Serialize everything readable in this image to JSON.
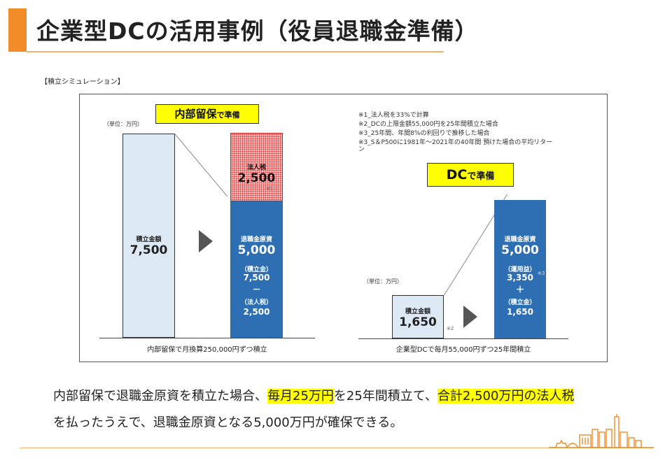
{
  "header": {
    "title": "企業型DCの活用事例（役員退職金準備）"
  },
  "simulation_label": "【積立シミュレーション】",
  "left_panel": {
    "badge_main": "内部留保",
    "badge_suffix": "で準備",
    "unit": "（単位：万円）",
    "bar1": {
      "label": "積立金額",
      "value": "7,500"
    },
    "tax_bar": {
      "label": "法人税",
      "value": "2,500",
      "note": "※1"
    },
    "bar2": {
      "label": "退職金原資",
      "value": "5,000",
      "line1_label": "（積立金）",
      "line1_value": "7,500",
      "operator": "－",
      "line2_label": "（法人税）",
      "line2_value": "2,500"
    },
    "caption": "内部留保で月換算250,000円ずつ積立"
  },
  "notes": [
    "※1_法人税を33%で計算",
    "※2_DCの上限金額55,000円を25年間積立た場合",
    "※3_25年間、年間8%の利回りで推移した場合",
    "※3_S＆P500に1981年～2021年の40年間 預けた場合の平均リター",
    "ン"
  ],
  "right_panel": {
    "badge_main": "DC",
    "badge_suffix": "で準備",
    "unit": "（単位：万円）",
    "bar1": {
      "label": "積立金額",
      "value": "1,650",
      "note": "※2"
    },
    "bar2": {
      "label": "退職金原資",
      "value": "5,000",
      "line1_label": "（運用益）",
      "line1_value": "3,350",
      "line1_note": "※3",
      "operator": "＋",
      "line2_label": "（積立金）",
      "line2_value": "1,650"
    },
    "caption": "企業型DCで毎月55,000円ずつ25年間積立"
  },
  "body": {
    "line1_a": "内部留保で退職金原資を積立た場合、",
    "line1_hl1": "毎月25万円",
    "line1_b": "を25年間積立て、",
    "line1_hl2": "合計2,500万円の法人税",
    "line2": "を払ったうえで、退職金原資となる5,000万円が確保できる。"
  },
  "colors": {
    "accent": "#f28c28",
    "bar_blue": "#2e6fb4",
    "bar_light": "#dde8f5",
    "tax_red": "#e02424",
    "highlight": "#ffff00"
  }
}
